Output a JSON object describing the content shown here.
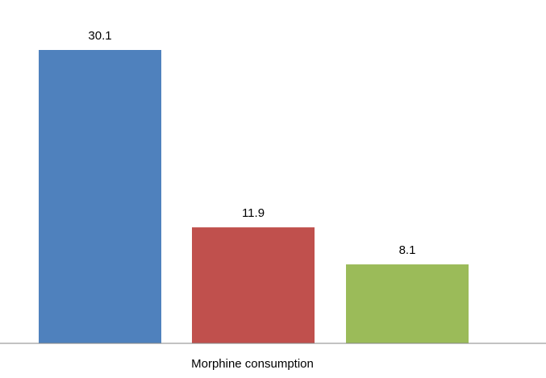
{
  "chart_data": {
    "type": "bar",
    "categories": [
      "Morphine consumption"
    ],
    "series": [
      {
        "values": [
          30.1
        ],
        "color": "#4F81BD"
      },
      {
        "values": [
          11.9
        ],
        "color": "#C0504D"
      },
      {
        "values": [
          8.1
        ],
        "color": "#9BBB59"
      }
    ],
    "data_labels": [
      "30.1",
      "11.9",
      "8.1"
    ],
    "ylim": [
      0,
      30.1
    ],
    "grid": false,
    "legend": "none",
    "title": "",
    "xlabel": "Morphine consumption",
    "ylabel": ""
  }
}
